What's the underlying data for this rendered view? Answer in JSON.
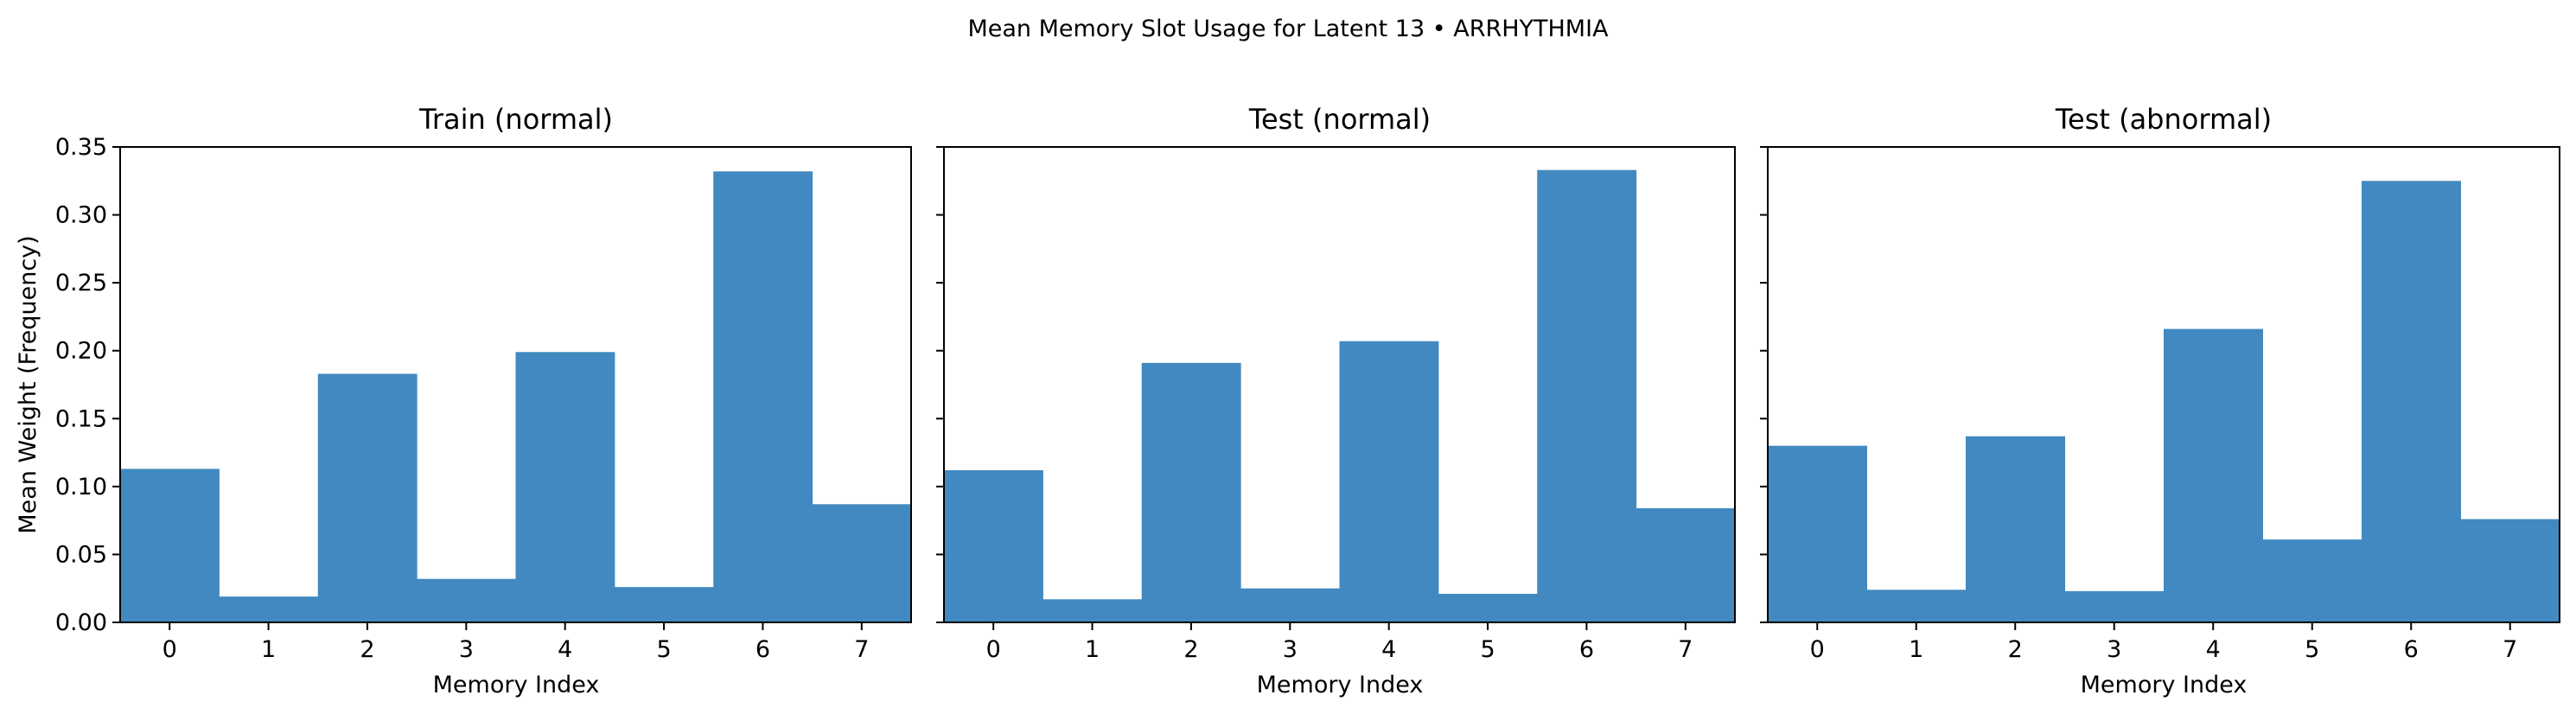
{
  "figure": {
    "title": "Mean Memory Slot Usage for Latent 13 • ARRHYTHMIA",
    "bar_color": "#4189C0"
  },
  "chart_data": [
    {
      "type": "bar",
      "title": "Train (normal)",
      "xlabel": "Memory Index",
      "ylabel": "Mean Weight (Frequency)",
      "categories": [
        "0",
        "1",
        "2",
        "3",
        "4",
        "5",
        "6",
        "7"
      ],
      "values": [
        0.113,
        0.019,
        0.183,
        0.032,
        0.199,
        0.026,
        0.332,
        0.087
      ],
      "ylim": [
        0,
        0.35
      ],
      "yticks": [
        "0.00",
        "0.05",
        "0.10",
        "0.15",
        "0.20",
        "0.25",
        "0.30",
        "0.35"
      ],
      "show_yticklabels": true,
      "grid": false
    },
    {
      "type": "bar",
      "title": "Test (normal)",
      "xlabel": "Memory Index",
      "ylabel": "",
      "categories": [
        "0",
        "1",
        "2",
        "3",
        "4",
        "5",
        "6",
        "7"
      ],
      "values": [
        0.112,
        0.017,
        0.191,
        0.025,
        0.207,
        0.021,
        0.333,
        0.084
      ],
      "ylim": [
        0,
        0.35
      ],
      "yticks": [
        "0.00",
        "0.05",
        "0.10",
        "0.15",
        "0.20",
        "0.25",
        "0.30",
        "0.35"
      ],
      "show_yticklabels": false,
      "grid": false
    },
    {
      "type": "bar",
      "title": "Test (abnormal)",
      "xlabel": "Memory Index",
      "ylabel": "",
      "categories": [
        "0",
        "1",
        "2",
        "3",
        "4",
        "5",
        "6",
        "7"
      ],
      "values": [
        0.13,
        0.024,
        0.137,
        0.023,
        0.216,
        0.061,
        0.325,
        0.076
      ],
      "ylim": [
        0,
        0.35
      ],
      "yticks": [
        "0.00",
        "0.05",
        "0.10",
        "0.15",
        "0.20",
        "0.25",
        "0.30",
        "0.35"
      ],
      "show_yticklabels": false,
      "grid": false
    }
  ]
}
